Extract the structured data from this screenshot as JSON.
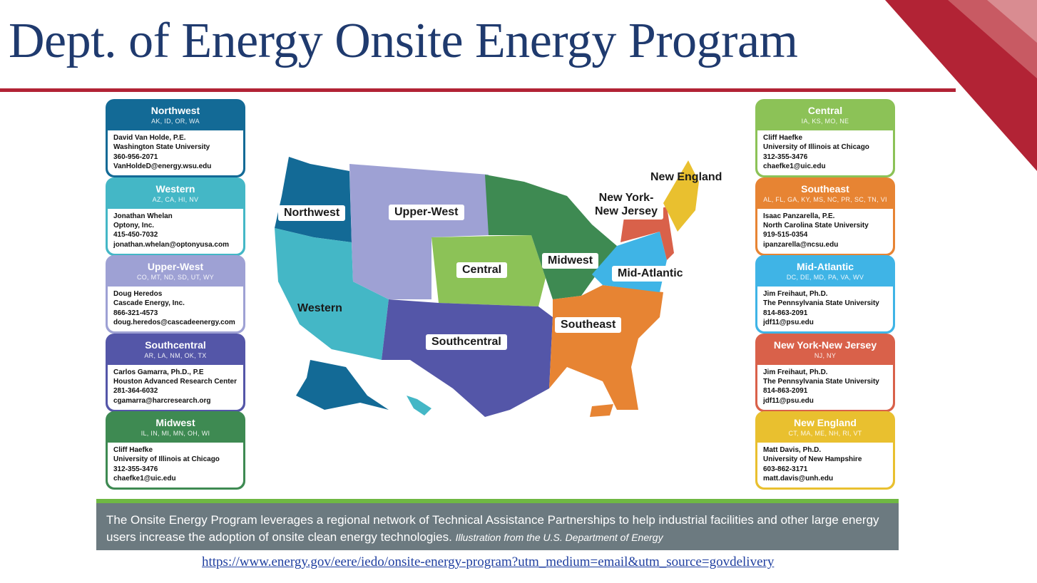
{
  "title": "Dept. of Energy Onsite Energy Program",
  "accent_color": "#b22335",
  "left_cards": [
    {
      "name": "Northwest",
      "states": "AK, ID, OR, WA",
      "contact": "David Van Holde, P.E.",
      "org": "Washington State University",
      "phone": "360-956-2071",
      "email": "VanHoldeD@energy.wsu.edu",
      "color": "#136a96"
    },
    {
      "name": "Western",
      "states": "AZ, CA, HI, NV",
      "contact": "Jonathan Whelan",
      "org": "Optony, Inc.",
      "phone": "415-450-7032",
      "email": "jonathan.whelan@optonyusa.com",
      "color": "#44b7c6"
    },
    {
      "name": "Upper-West",
      "states": "CO, MT, ND, SD, UT, WY",
      "contact": "Doug Heredos",
      "org": "Cascade Energy, Inc.",
      "phone": "866-321-4573",
      "email": "doug.heredos@cascadeenergy.com",
      "color": "#9ea1d4"
    },
    {
      "name": "Southcentral",
      "states": "AR, LA, NM, OK, TX",
      "contact": "Carlos Gamarra, Ph.D., P.E",
      "org": "Houston Advanced Research Center",
      "phone": "281-364-6032",
      "email": "cgamarra@harcresearch.org",
      "color": "#5456a8"
    },
    {
      "name": "Midwest",
      "states": "IL, IN, MI, MN, OH, WI",
      "contact": "Cliff Haefke",
      "org": "University of Illinois at Chicago",
      "phone": "312-355-3476",
      "email": "chaefke1@uic.edu",
      "color": "#3e8a52"
    }
  ],
  "right_cards": [
    {
      "name": "Central",
      "states": "IA, KS, MO, NE",
      "contact": "Cliff Haefke",
      "org": "University of Illinois at Chicago",
      "phone": "312-355-3476",
      "email": "chaefke1@uic.edu",
      "color": "#8cc257"
    },
    {
      "name": "Southeast",
      "states": "AL, FL, GA, KY, MS, NC, PR, SC, TN, VI",
      "contact": "Isaac Panzarella, P.E.",
      "org": "North Carolina State University",
      "phone": "919-515-0354",
      "email": "ipanzarella@ncsu.edu",
      "color": "#e78433"
    },
    {
      "name": "Mid-Atlantic",
      "states": "DC, DE, MD, PA, VA, WV",
      "contact": "Jim Freihaut, Ph.D.",
      "org": "The Pennsylvania State University",
      "phone": "814-863-2091",
      "email": "jdf11@psu.edu",
      "color": "#3fb4e6"
    },
    {
      "name": "New York-New Jersey",
      "states": "NJ, NY",
      "contact": "Jim Freihaut, Ph.D.",
      "org": "The Pennsylvania State University",
      "phone": "814-863-2091",
      "email": "jdf11@psu.edu",
      "color": "#d9614a"
    },
    {
      "name": "New England",
      "states": "CT, MA, ME, NH, RI, VT",
      "contact": "Matt Davis, Ph.D.",
      "org": "University of New Hampshire",
      "phone": "603-862-3171",
      "email": "matt.davis@unh.edu",
      "color": "#e9c02f"
    }
  ],
  "map_labels": {
    "northwest": "Northwest",
    "upper_west": "Upper-West",
    "central": "Central",
    "midwest": "Midwest",
    "ny_nj_line1": "New York-",
    "ny_nj_line2": "New Jersey",
    "new_england": "New England",
    "mid_atlantic": "Mid-Atlantic",
    "western": "Western",
    "southeast": "Southeast",
    "southcentral": "Southcentral"
  },
  "footer": {
    "text": "The Onsite Energy Program leverages a regional network of Technical Assistance Partnerships to help industrial facilities and other large energy users increase the adoption of onsite clean energy technologies.",
    "credit": "Illustration from the U.S. Department of Energy"
  },
  "link": "https://www.energy.gov/eere/iedo/onsite-energy-program?utm_medium=email&utm_source=govdelivery"
}
